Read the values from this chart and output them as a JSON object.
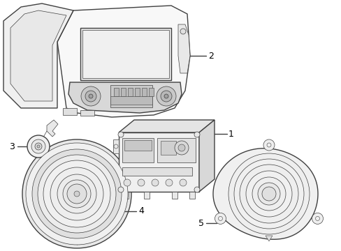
{
  "background_color": "#ffffff",
  "line_color": "#404040",
  "text_color": "#000000",
  "fig_width": 4.89,
  "fig_height": 3.6,
  "dpi": 100
}
